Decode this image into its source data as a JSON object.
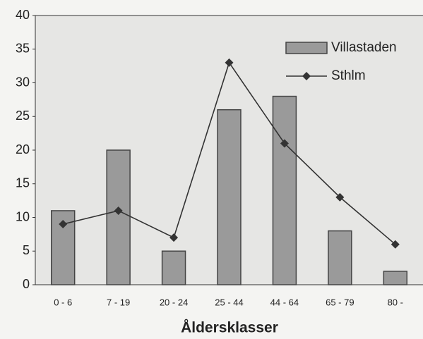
{
  "chart_data": {
    "type": "bar",
    "x_label": "Åldersklasser",
    "categories": [
      "0 - 6",
      "7 - 19",
      "20 - 24",
      "25 - 44",
      "44 - 64",
      "65 - 79",
      "80 -"
    ],
    "series": [
      {
        "name": "Villastaden",
        "type": "bar",
        "color": "#9a9a9a",
        "values": [
          11,
          20,
          5,
          26,
          28,
          8,
          2
        ]
      },
      {
        "name": "Sthlm",
        "type": "line",
        "color": "#333333",
        "values": [
          9,
          11,
          7,
          33,
          21,
          13,
          6
        ]
      }
    ],
    "ylim": [
      0,
      40
    ],
    "yticks": [
      0,
      5,
      10,
      15,
      20,
      25,
      30,
      35,
      40
    ],
    "legend": "upper right"
  }
}
